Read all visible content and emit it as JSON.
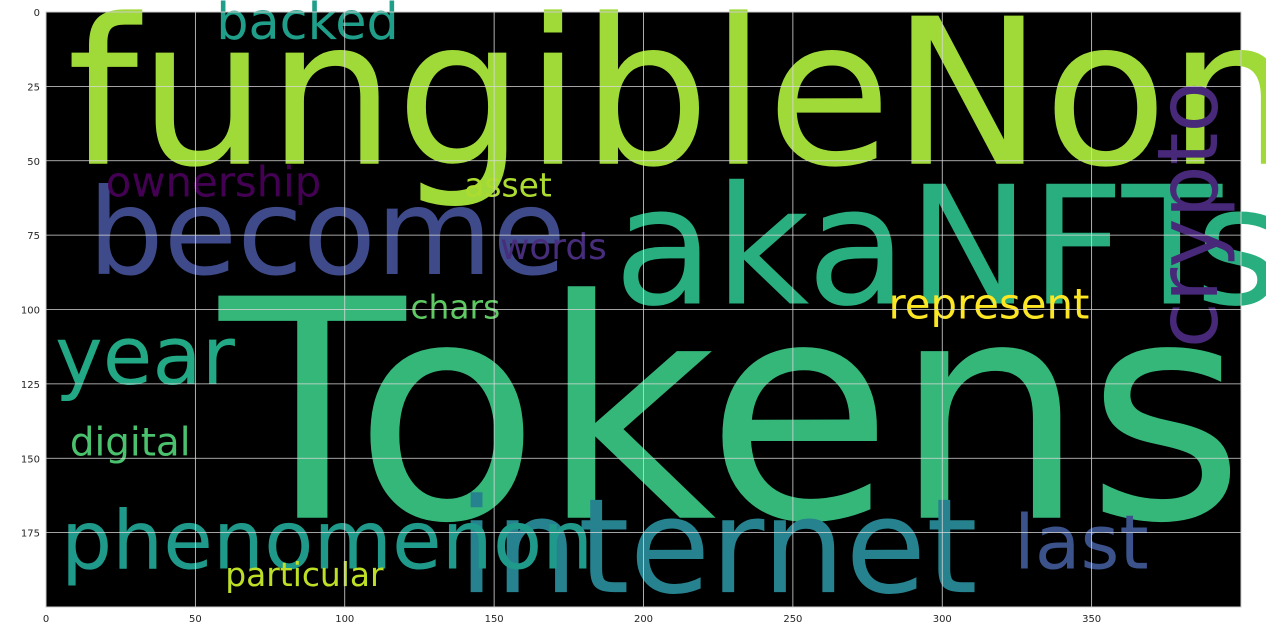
{
  "chart_data": {
    "type": "wordcloud",
    "title": "",
    "xlabel": "",
    "ylabel": "",
    "xlim": [
      0,
      400
    ],
    "ylim": [
      200,
      0
    ],
    "grid": true,
    "background": "#000000",
    "xticks": [
      0,
      50,
      100,
      150,
      200,
      250,
      300,
      350
    ],
    "yticks": [
      0,
      25,
      50,
      75,
      100,
      125,
      150,
      175
    ],
    "words": [
      {
        "text": "Tokens",
        "x": 58,
        "y": 170,
        "size": 102,
        "color": "#35b779",
        "rotate": false
      },
      {
        "text": "fungibleNon",
        "x": 7,
        "y": 51,
        "size": 68,
        "color": "#a0da39",
        "rotate": false
      },
      {
        "text": "akaNFTs",
        "x": 190,
        "y": 98,
        "size": 55,
        "color": "#29af7f",
        "rotate": false
      },
      {
        "text": "become",
        "x": 14,
        "y": 88,
        "size": 40,
        "color": "#3e4a89",
        "rotate": false
      },
      {
        "text": "internet",
        "x": 138,
        "y": 195,
        "size": 44,
        "color": "#26828e",
        "rotate": false
      },
      {
        "text": "phenomenon",
        "x": 5,
        "y": 187,
        "size": 27,
        "color": "#1f9a8a",
        "rotate": false
      },
      {
        "text": "crypto",
        "x": 392,
        "y": 113,
        "size": 28,
        "color": "#482878",
        "rotate": true
      },
      {
        "text": "year",
        "x": 3,
        "y": 125,
        "size": 27,
        "color": "#22a884",
        "rotate": false
      },
      {
        "text": "last",
        "x": 324,
        "y": 187,
        "size": 25,
        "color": "#3b528b",
        "rotate": false
      },
      {
        "text": "backed",
        "x": 57,
        "y": 9,
        "size": 17,
        "color": "#1f9e89",
        "rotate": false
      },
      {
        "text": "ownership",
        "x": 20,
        "y": 62,
        "size": 14,
        "color": "#440154",
        "rotate": false
      },
      {
        "text": "asset",
        "x": 140,
        "y": 62,
        "size": 11,
        "color": "#addc30",
        "rotate": false
      },
      {
        "text": "words",
        "x": 152,
        "y": 83,
        "size": 12,
        "color": "#472d7b",
        "rotate": false
      },
      {
        "text": "represent",
        "x": 282,
        "y": 103,
        "size": 14,
        "color": "#fde725",
        "rotate": false
      },
      {
        "text": "chars",
        "x": 122,
        "y": 103,
        "size": 11,
        "color": "#5ec962",
        "rotate": false
      },
      {
        "text": "digital",
        "x": 8,
        "y": 149,
        "size": 13,
        "color": "#4ac16d",
        "rotate": false
      },
      {
        "text": "particular",
        "x": 60,
        "y": 193,
        "size": 11,
        "color": "#bddf26",
        "rotate": false
      }
    ]
  }
}
